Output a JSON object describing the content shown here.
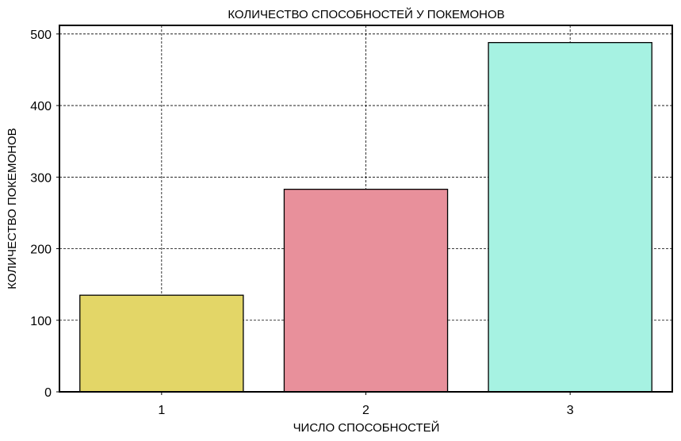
{
  "chart_data": {
    "type": "bar",
    "title": "КОЛИЧЕСТВО СПОСОБНОСТЕЙ У ПОКЕМОНОВ",
    "xlabel": "ЧИСЛО СПОСОБНОСТЕЙ",
    "ylabel": "КОЛИЧЕСТВО ПОКЕМОНОВ",
    "categories": [
      "1",
      "2",
      "3"
    ],
    "values": [
      135,
      283,
      488
    ],
    "ylim": [
      0,
      512
    ],
    "yticks": [
      0,
      100,
      200,
      300,
      400,
      500
    ],
    "colors": [
      "#e3d667",
      "#e8909b",
      "#a6f2e2"
    ],
    "grid": true,
    "grid_style": "dashed"
  }
}
